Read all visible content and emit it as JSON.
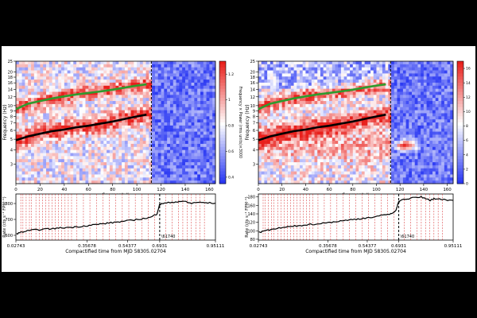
{
  "colors": {
    "frame_bg": "#000000",
    "panel_bg": "#ffffff",
    "red": "#e8201c",
    "blue": "#1f2ef2",
    "green": "#2e9b2e",
    "trace": "#000000",
    "marker": "#d62728"
  },
  "chart_data": [
    {
      "type": "heatmap",
      "panel": "left",
      "xlabel": "Segment #",
      "ylabel": "Frequency (Hz)",
      "colorbar_label": "Frequency × Power (rms units)×3000",
      "xlim": [
        0,
        165
      ],
      "ylim": [
        2,
        25
      ],
      "log_y": true,
      "x_ticks": [
        0,
        20,
        40,
        60,
        80,
        100,
        120,
        140,
        160
      ],
      "y_ticks": [
        3,
        4,
        5,
        6,
        7,
        8,
        9,
        10,
        12,
        14,
        16,
        18,
        20,
        25
      ],
      "colorbar_ticks": [
        0.4,
        0.6,
        0.8,
        1.0,
        1.2
      ],
      "colorbar_range": [
        0.35,
        1.3
      ],
      "divider_x": 112,
      "series": [
        {
          "color": "green",
          "x": [
            0,
            10,
            20,
            30,
            40,
            50,
            60,
            70,
            80,
            90,
            100,
            108
          ],
          "y": [
            9.3,
            10.4,
            11.0,
            11.6,
            12.1,
            12.6,
            13.0,
            13.4,
            13.9,
            14.5,
            15.1,
            15.5
          ]
        },
        {
          "color": "black",
          "x": [
            0,
            10,
            20,
            30,
            40,
            50,
            60,
            70,
            80,
            90,
            100,
            108
          ],
          "y": [
            4.9,
            5.3,
            5.6,
            5.9,
            6.1,
            6.4,
            6.6,
            6.9,
            7.2,
            7.6,
            8.0,
            8.3
          ]
        }
      ]
    },
    {
      "type": "line",
      "panel": "left-bottom",
      "xlabel": "Compactified time from MJD 58305.02704",
      "ylabel": "Rate (cts s⁻¹ FPM⁻¹)",
      "x_tick_labels": [
        "0.02743",
        "0.35678",
        "0.54377",
        "0.6931",
        "0.95111"
      ],
      "x_tick_values": [
        0.02743,
        0.35678,
        0.54377,
        0.6931,
        0.95111
      ],
      "xlim": [
        0.02743,
        0.95111
      ],
      "ylim": [
        570,
        860
      ],
      "y_ticks": [
        600,
        700,
        800
      ],
      "divider_x": 0.6931,
      "divider_label": "\\61740",
      "x": [
        0.03,
        0.06,
        0.1,
        0.15,
        0.2,
        0.25,
        0.3,
        0.35,
        0.4,
        0.45,
        0.5,
        0.55,
        0.6,
        0.65,
        0.68,
        0.692,
        0.7,
        0.75,
        0.8,
        0.84,
        0.86,
        0.9,
        0.95
      ],
      "y": [
        610,
        622,
        632,
        638,
        642,
        648,
        652,
        660,
        668,
        676,
        684,
        692,
        702,
        712,
        735,
        790,
        798,
        808,
        815,
        800,
        808,
        805,
        802
      ],
      "markers": [
        0.05,
        0.06,
        0.075,
        0.09,
        0.1,
        0.12,
        0.135,
        0.15,
        0.165,
        0.18,
        0.195,
        0.21,
        0.225,
        0.24,
        0.255,
        0.27,
        0.285,
        0.31,
        0.34,
        0.37,
        0.4,
        0.43,
        0.46,
        0.49,
        0.52,
        0.55,
        0.58,
        0.61,
        0.64,
        0.67,
        0.72,
        0.75,
        0.78,
        0.8,
        0.82,
        0.84,
        0.86,
        0.88,
        0.9
      ]
    },
    {
      "type": "heatmap",
      "panel": "right",
      "xlabel": "Segment #",
      "ylabel": "Frequency (Hz)",
      "colorbar_label": "Frequency × Power (rms units)×3000",
      "xlim": [
        0,
        165
      ],
      "ylim": [
        2,
        25
      ],
      "log_y": true,
      "x_ticks": [
        0,
        20,
        40,
        60,
        80,
        100,
        120,
        140,
        160
      ],
      "y_ticks": [
        3,
        4,
        5,
        6,
        7,
        8,
        9,
        10,
        12,
        14,
        16,
        18,
        20,
        25
      ],
      "colorbar_ticks": [
        0,
        2,
        4,
        6,
        8,
        10,
        12,
        14,
        16
      ],
      "colorbar_range": [
        0,
        17
      ],
      "divider_x": 112,
      "series": [
        {
          "color": "green",
          "x": [
            0,
            10,
            20,
            30,
            40,
            50,
            60,
            70,
            80,
            90,
            100,
            108
          ],
          "y": [
            9.3,
            10.4,
            11.0,
            11.6,
            12.1,
            12.6,
            13.0,
            13.4,
            13.9,
            14.5,
            15.1,
            15.5
          ]
        },
        {
          "color": "black",
          "x": [
            0,
            10,
            20,
            30,
            40,
            50,
            60,
            70,
            80,
            90,
            100,
            108
          ],
          "y": [
            4.9,
            5.3,
            5.6,
            5.9,
            6.1,
            6.4,
            6.6,
            6.9,
            7.2,
            7.6,
            8.0,
            8.3
          ]
        }
      ]
    },
    {
      "type": "line",
      "panel": "right-bottom",
      "xlabel": "Compactified time from MJD 58305.02704",
      "ylabel": "Rate (cts s⁻¹ FPM⁻¹)",
      "x_tick_labels": [
        "0.02743",
        "0.35678",
        "0.54377",
        "0.6931",
        "0.95111"
      ],
      "x_tick_values": [
        0.02743,
        0.35678,
        0.54377,
        0.6931,
        0.95111
      ],
      "xlim": [
        0.02743,
        0.95111
      ],
      "ylim": [
        78,
        187
      ],
      "y_ticks": [
        80,
        100,
        120,
        140,
        160,
        180
      ],
      "divider_x": 0.6931,
      "divider_label": "\\61740",
      "x": [
        0.03,
        0.06,
        0.1,
        0.15,
        0.2,
        0.25,
        0.3,
        0.35,
        0.4,
        0.45,
        0.5,
        0.55,
        0.6,
        0.65,
        0.68,
        0.692,
        0.7,
        0.75,
        0.8,
        0.84,
        0.86,
        0.9,
        0.95
      ],
      "y": [
        96,
        100,
        104,
        108,
        111,
        114,
        116,
        119,
        122,
        125,
        128,
        131,
        135,
        139,
        148,
        168,
        172,
        177,
        180,
        172,
        176,
        174,
        172
      ],
      "markers": [
        0.05,
        0.06,
        0.075,
        0.09,
        0.1,
        0.12,
        0.135,
        0.15,
        0.165,
        0.18,
        0.195,
        0.21,
        0.225,
        0.24,
        0.255,
        0.27,
        0.285,
        0.31,
        0.34,
        0.37,
        0.4,
        0.43,
        0.46,
        0.49,
        0.52,
        0.55,
        0.58,
        0.61,
        0.64,
        0.67,
        0.72,
        0.75,
        0.78,
        0.8,
        0.82,
        0.84,
        0.86,
        0.88,
        0.9
      ]
    }
  ]
}
